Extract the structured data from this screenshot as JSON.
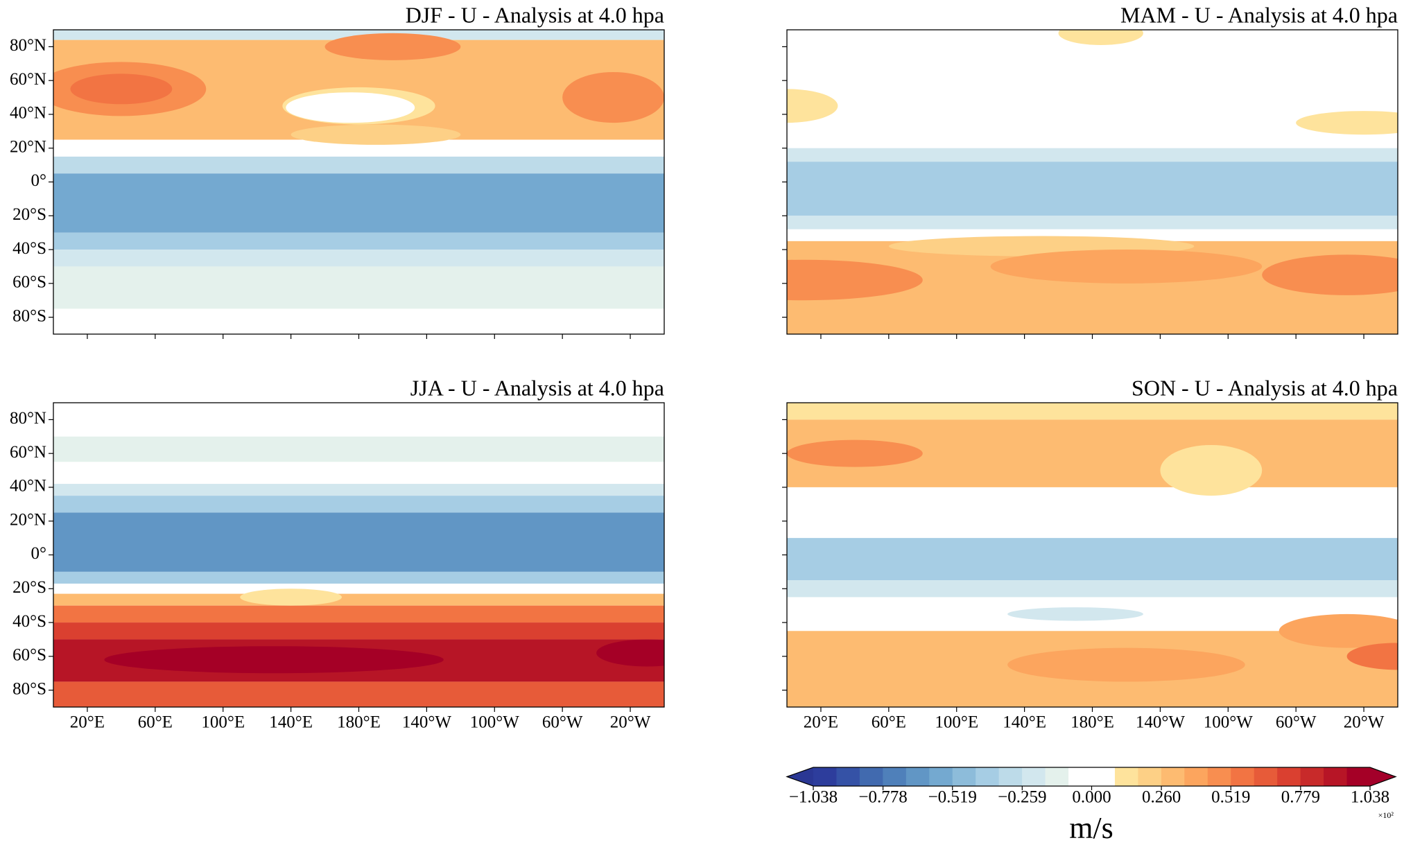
{
  "panels": [
    {
      "title": "DJF - U - Analysis at 4.0 hpa"
    },
    {
      "title": "MAM - U - Analysis at 4.0 hpa"
    },
    {
      "title": "JJA - U - Analysis at 4.0 hpa"
    },
    {
      "title": "SON - U - Analysis at 4.0 hpa"
    }
  ],
  "lat_ticks": [
    {
      "value": 80,
      "label": "80°N"
    },
    {
      "value": 60,
      "label": "60°N"
    },
    {
      "value": 40,
      "label": "40°N"
    },
    {
      "value": 20,
      "label": "20°N"
    },
    {
      "value": 0,
      "label": "0°"
    },
    {
      "value": -20,
      "label": "20°S"
    },
    {
      "value": -40,
      "label": "40°S"
    },
    {
      "value": -60,
      "label": "60°S"
    },
    {
      "value": -80,
      "label": "80°S"
    }
  ],
  "lon_ticks": [
    {
      "value": 20,
      "label": "20°E"
    },
    {
      "value": 60,
      "label": "60°E"
    },
    {
      "value": 100,
      "label": "100°E"
    },
    {
      "value": 140,
      "label": "140°E"
    },
    {
      "value": 180,
      "label": "180°E"
    },
    {
      "value": 220,
      "label": "140°W"
    },
    {
      "value": 260,
      "label": "100°W"
    },
    {
      "value": 300,
      "label": "60°W"
    },
    {
      "value": 340,
      "label": "20°W"
    }
  ],
  "colorbar": {
    "lim": [
      -1.038,
      1.038
    ],
    "colors": [
      "#2d3d9c",
      "#3552a6",
      "#416aaf",
      "#4f80ba",
      "#6196c5",
      "#74a9d0",
      "#8dbcda",
      "#a6cde4",
      "#bddbe9",
      "#d2e7ee",
      "#e4f1ec",
      "#ffffff",
      "#ffffff",
      "#fee39c",
      "#fdd086",
      "#fdbb71",
      "#fca55e",
      "#f88e50",
      "#f27443",
      "#e75b39",
      "#da4030",
      "#c82a2a",
      "#b71526",
      "#a50026"
    ],
    "under_color": "#2a3794",
    "over_color": "#a3002a",
    "ticks": [
      {
        "value": -1.038,
        "label": "−1.038"
      },
      {
        "value": -0.778,
        "label": "−0.778"
      },
      {
        "value": -0.519,
        "label": "−0.519"
      },
      {
        "value": -0.259,
        "label": "−0.259"
      },
      {
        "value": 0,
        "label": "0.000"
      },
      {
        "value": 0.26,
        "label": "0.260"
      },
      {
        "value": 0.519,
        "label": "0.519"
      },
      {
        "value": 0.779,
        "label": "0.779"
      },
      {
        "value": 1.038,
        "label": "1.038"
      }
    ],
    "label": "m/s",
    "scale_label": "×10²"
  }
}
